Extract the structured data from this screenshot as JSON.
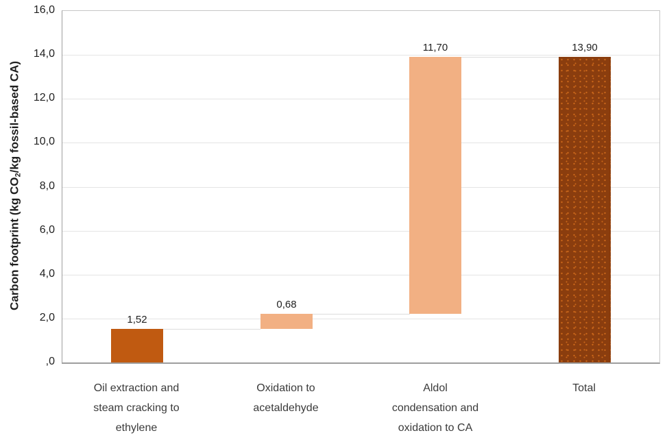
{
  "chart_data": {
    "type": "bar",
    "subtype": "waterfall",
    "title": "",
    "ylabel": "Carbon footprint (kg CO2/kg fossil-based CA)",
    "ylabel_parts": {
      "prefix": "Carbon footprint (kg CO",
      "subscript": "2",
      "suffix": "/kg fossil-based CA)"
    },
    "ylim": [
      0,
      16
    ],
    "grid": true,
    "legend": false,
    "decimal_separator": ",",
    "yticks": [
      {
        "value": 16,
        "label": "16,0"
      },
      {
        "value": 14,
        "label": "14,0"
      },
      {
        "value": 12,
        "label": "12,0"
      },
      {
        "value": 10,
        "label": "10,0"
      },
      {
        "value": 8,
        "label": "8,0"
      },
      {
        "value": 6,
        "label": "6,0"
      },
      {
        "value": 4,
        "label": "4,0"
      },
      {
        "value": 2,
        "label": "2,0"
      },
      {
        "value": 0,
        "label": ",0"
      }
    ],
    "categories": [
      "Oil extraction and steam cracking to ethylene",
      "Oxidation to acetaldehyde",
      "Aldol condensation and oxidation to CA",
      "Total"
    ],
    "bars": [
      {
        "category_lines": [
          "Oil extraction and",
          "steam cracking to",
          "ethylene"
        ],
        "base": 0,
        "value": 1.52,
        "value_label": "1,52",
        "style": "dark_orange"
      },
      {
        "category_lines": [
          "Oxidation to",
          "acetaldehyde"
        ],
        "base": 1.52,
        "value": 0.68,
        "value_label": "0,68",
        "style": "light_orange"
      },
      {
        "category_lines": [
          "Aldol",
          "condensation and",
          "oxidation to CA"
        ],
        "base": 2.2,
        "value": 11.7,
        "value_label": "11,70",
        "style": "light_orange"
      },
      {
        "category_lines": [
          "Total"
        ],
        "base": 0,
        "value": 13.9,
        "value_label": "13,90",
        "style": "brown_dotted"
      }
    ],
    "colors": {
      "dark_orange": "#C05A11",
      "light_orange": "#F2B083",
      "brown": "#8A3D0E",
      "brown_dot": "#C9661A",
      "gridline": "#E4E4E4",
      "connector": "#DCDCDC",
      "axis_line": "#9E9E9E",
      "plot_border": "#C6C6C6",
      "text": "#1F1F1F",
      "category_text": "#3A3A3A"
    }
  }
}
